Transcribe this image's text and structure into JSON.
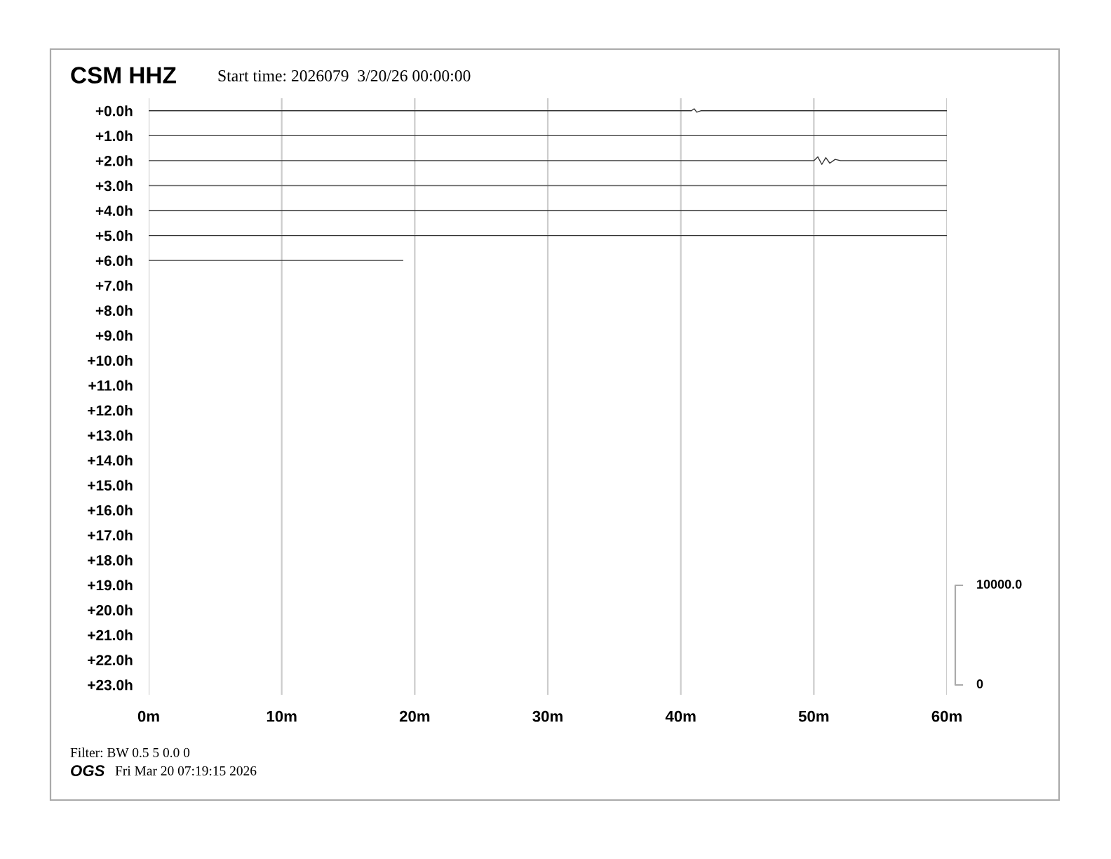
{
  "chart_data": {
    "type": "line",
    "title": "CSM HHZ",
    "subtitle": "Start time: 2026079  3/20/26 00:00:00",
    "annotations": [
      "Filter: BW 0.5 5 0.0 0",
      "OGS",
      "Fri Mar 20 07:19:15 2026",
      "10000.0",
      "0"
    ],
    "xlim": [
      0,
      60
    ],
    "xticks": [
      {
        "value": 0,
        "label": "0m"
      },
      {
        "value": 10,
        "label": "10m"
      },
      {
        "value": 20,
        "label": "20m"
      },
      {
        "value": 30,
        "label": "30m"
      },
      {
        "value": 40,
        "label": "40m"
      },
      {
        "value": 50,
        "label": "50m"
      },
      {
        "value": 60,
        "label": "60m"
      }
    ],
    "ylim": [
      23.4,
      -0.5
    ],
    "yticks": [
      {
        "value": 0,
        "label": "+0.0h"
      },
      {
        "value": 1,
        "label": "+1.0h"
      },
      {
        "value": 2,
        "label": "+2.0h"
      },
      {
        "value": 3,
        "label": "+3.0h"
      },
      {
        "value": 4,
        "label": "+4.0h"
      },
      {
        "value": 5,
        "label": "+5.0h"
      },
      {
        "value": 6,
        "label": "+6.0h"
      },
      {
        "value": 7,
        "label": "+7.0h"
      },
      {
        "value": 8,
        "label": "+8.0h"
      },
      {
        "value": 9,
        "label": "+9.0h"
      },
      {
        "value": 10,
        "label": "+10.0h"
      },
      {
        "value": 11,
        "label": "+11.0h"
      },
      {
        "value": 12,
        "label": "+12.0h"
      },
      {
        "value": 13,
        "label": "+13.0h"
      },
      {
        "value": 14,
        "label": "+14.0h"
      },
      {
        "value": 15,
        "label": "+15.0h"
      },
      {
        "value": 16,
        "label": "+16.0h"
      },
      {
        "value": 17,
        "label": "+17.0h"
      },
      {
        "value": 18,
        "label": "+18.0h"
      },
      {
        "value": 19,
        "label": "+19.0h"
      },
      {
        "value": 20,
        "label": "+20.0h"
      },
      {
        "value": 21,
        "label": "+21.0h"
      },
      {
        "value": 22,
        "label": "+22.0h"
      },
      {
        "value": 23,
        "label": "+23.0h"
      }
    ],
    "grid": "x",
    "marker": "none",
    "line_style": "solid",
    "series": [
      {
        "color": "#333333",
        "x": [
          0,
          40.8,
          41.0,
          41.2,
          41.5,
          60
        ],
        "values": [
          0,
          0,
          -0.08,
          0.06,
          0,
          0
        ]
      },
      {
        "color": "#333333",
        "x": [
          0,
          60
        ],
        "values": [
          1,
          1
        ]
      },
      {
        "color": "#333333",
        "x": [
          0,
          50.0,
          50.3,
          50.6,
          50.9,
          51.2,
          51.6,
          52.0,
          60
        ],
        "values": [
          2,
          2,
          1.85,
          2.15,
          1.88,
          2.1,
          1.95,
          2,
          2
        ]
      },
      {
        "color": "#666666",
        "x": [
          0,
          60
        ],
        "values": [
          3,
          3
        ]
      },
      {
        "color": "#333333",
        "x": [
          0,
          60
        ],
        "values": [
          4,
          4
        ]
      },
      {
        "color": "#333333",
        "x": [
          0,
          60
        ],
        "values": [
          5,
          5
        ]
      },
      {
        "color": "#333333",
        "x": [
          0,
          19.1
        ],
        "values": [
          6,
          6
        ]
      }
    ]
  }
}
